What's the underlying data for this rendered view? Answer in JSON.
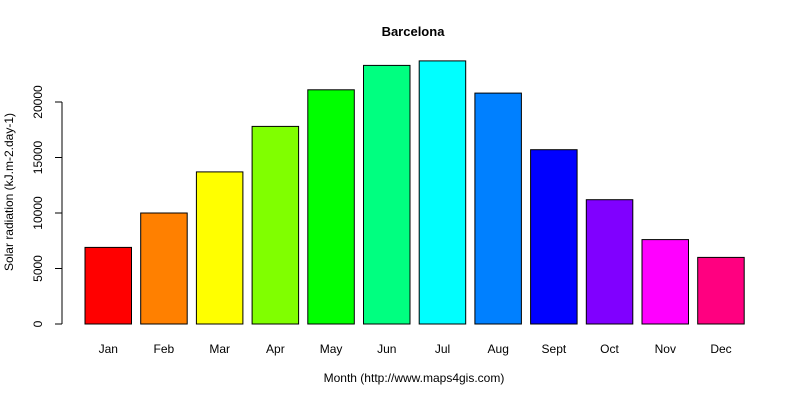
{
  "chart_data": {
    "type": "bar",
    "title": "Barcelona",
    "xlabel": "Month (http://www.maps4gis.com)",
    "ylabel": "Solar radiation (kJ.m-2.day-1)",
    "categories": [
      "Jan",
      "Feb",
      "Mar",
      "Apr",
      "May",
      "Jun",
      "Jul",
      "Aug",
      "Sept",
      "Oct",
      "Nov",
      "Dec"
    ],
    "values": [
      6900,
      10000,
      13700,
      17800,
      21100,
      23300,
      23700,
      20800,
      15700,
      11200,
      7600,
      6000
    ],
    "colors": [
      "#ff0000",
      "#ff8000",
      "#ffff00",
      "#80ff00",
      "#00ff00",
      "#00ff80",
      "#00ffff",
      "#0080ff",
      "#0000ff",
      "#8000ff",
      "#ff00ff",
      "#ff0080"
    ],
    "yticks": [
      0,
      5000,
      10000,
      15000,
      20000
    ],
    "ylim": [
      0,
      24000
    ],
    "grid": false,
    "legend": "none"
  }
}
